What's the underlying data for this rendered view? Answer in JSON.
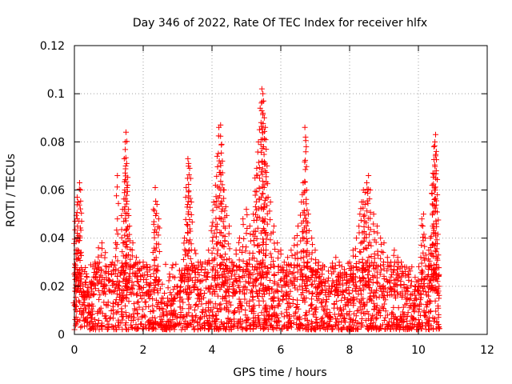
{
  "chart_data": {
    "type": "scatter",
    "title": "Day 346 of 2022, Rate Of TEC Index for receiver hlfx",
    "xlabel": "GPS time / hours",
    "ylabel": "ROTI / TECUs",
    "xlim": [
      0,
      12
    ],
    "ylim": [
      0,
      0.12
    ],
    "xticks": [
      0,
      2,
      4,
      6,
      8,
      10,
      12
    ],
    "xtick_labels": [
      "0",
      "2",
      "4",
      "6",
      "8",
      "10",
      "12"
    ],
    "yticks": [
      0,
      0.02,
      0.04,
      0.06,
      0.08,
      0.1,
      0.12
    ],
    "ytick_labels": [
      "0",
      "0.02",
      "0.04",
      "0.06",
      "0.08",
      "0.1",
      "0.12"
    ],
    "grid": true,
    "marker": "plus",
    "color": "#ff0000",
    "series": [
      {
        "name": "ROTI",
        "points": [
          [
            0.0,
            0.012
          ],
          [
            0.02,
            0.047
          ],
          [
            0.05,
            0.035
          ],
          [
            0.08,
            0.057
          ],
          [
            0.1,
            0.055
          ],
          [
            0.12,
            0.041
          ],
          [
            0.15,
            0.063
          ],
          [
            0.18,
            0.06
          ],
          [
            0.2,
            0.025
          ],
          [
            0.25,
            0.02
          ],
          [
            0.3,
            0.015
          ],
          [
            0.4,
            0.018
          ],
          [
            0.5,
            0.022
          ],
          [
            0.6,
            0.03
          ],
          [
            0.7,
            0.036
          ],
          [
            0.8,
            0.038
          ],
          [
            0.9,
            0.034
          ],
          [
            1.0,
            0.028
          ],
          [
            1.1,
            0.03
          ],
          [
            1.2,
            0.038
          ],
          [
            1.25,
            0.066
          ],
          [
            1.3,
            0.02
          ],
          [
            1.4,
            0.052
          ],
          [
            1.45,
            0.073
          ],
          [
            1.48,
            0.08
          ],
          [
            1.5,
            0.084
          ],
          [
            1.52,
            0.071
          ],
          [
            1.55,
            0.062
          ],
          [
            1.6,
            0.045
          ],
          [
            1.7,
            0.038
          ],
          [
            1.8,
            0.032
          ],
          [
            1.9,
            0.03
          ],
          [
            2.0,
            0.03
          ],
          [
            2.1,
            0.029
          ],
          [
            2.2,
            0.028
          ],
          [
            2.3,
            0.052
          ],
          [
            2.35,
            0.061
          ],
          [
            2.4,
            0.054
          ],
          [
            2.45,
            0.048
          ],
          [
            2.5,
            0.005
          ],
          [
            2.6,
            0.004
          ],
          [
            2.7,
            0.008
          ],
          [
            2.8,
            0.012
          ],
          [
            2.9,
            0.015
          ],
          [
            3.0,
            0.02
          ],
          [
            3.1,
            0.025
          ],
          [
            3.2,
            0.04
          ],
          [
            3.25,
            0.061
          ],
          [
            3.3,
            0.073
          ],
          [
            3.32,
            0.071
          ],
          [
            3.35,
            0.069
          ],
          [
            3.4,
            0.055
          ],
          [
            3.5,
            0.035
          ],
          [
            3.6,
            0.03
          ],
          [
            3.7,
            0.028
          ],
          [
            3.8,
            0.03
          ],
          [
            3.9,
            0.035
          ],
          [
            4.0,
            0.045
          ],
          [
            4.05,
            0.055
          ],
          [
            4.1,
            0.062
          ],
          [
            4.15,
            0.074
          ],
          [
            4.2,
            0.086
          ],
          [
            4.25,
            0.087
          ],
          [
            4.28,
            0.079
          ],
          [
            4.3,
            0.072
          ],
          [
            4.35,
            0.06
          ],
          [
            4.4,
            0.053
          ],
          [
            4.5,
            0.045
          ],
          [
            4.6,
            0.03
          ],
          [
            4.7,
            0.035
          ],
          [
            4.8,
            0.04
          ],
          [
            4.9,
            0.048
          ],
          [
            5.0,
            0.052
          ],
          [
            5.1,
            0.045
          ],
          [
            5.2,
            0.05
          ],
          [
            5.25,
            0.065
          ],
          [
            5.3,
            0.069
          ],
          [
            5.35,
            0.08
          ],
          [
            5.4,
            0.094
          ],
          [
            5.45,
            0.102
          ],
          [
            5.48,
            0.1
          ],
          [
            5.5,
            0.097
          ],
          [
            5.52,
            0.09
          ],
          [
            5.55,
            0.086
          ],
          [
            5.6,
            0.07
          ],
          [
            5.7,
            0.055
          ],
          [
            5.8,
            0.045
          ],
          [
            5.9,
            0.038
          ],
          [
            6.0,
            0.035
          ],
          [
            6.1,
            0.03
          ],
          [
            6.2,
            0.032
          ],
          [
            6.3,
            0.035
          ],
          [
            6.4,
            0.04
          ],
          [
            6.5,
            0.045
          ],
          [
            6.6,
            0.055
          ],
          [
            6.65,
            0.063
          ],
          [
            6.7,
            0.086
          ],
          [
            6.72,
            0.082
          ],
          [
            6.75,
            0.06
          ],
          [
            6.8,
            0.05
          ],
          [
            6.9,
            0.04
          ],
          [
            7.0,
            0.035
          ],
          [
            7.1,
            0.03
          ],
          [
            7.2,
            0.025
          ],
          [
            7.3,
            0.022
          ],
          [
            7.4,
            0.02
          ],
          [
            7.5,
            0.028
          ],
          [
            7.6,
            0.032
          ],
          [
            7.7,
            0.03
          ],
          [
            7.8,
            0.025
          ],
          [
            7.9,
            0.025
          ],
          [
            8.0,
            0.03
          ],
          [
            8.1,
            0.035
          ],
          [
            8.2,
            0.04
          ],
          [
            8.3,
            0.05
          ],
          [
            8.35,
            0.055
          ],
          [
            8.4,
            0.06
          ],
          [
            8.45,
            0.059
          ],
          [
            8.5,
            0.063
          ],
          [
            8.55,
            0.066
          ],
          [
            8.6,
            0.06
          ],
          [
            8.7,
            0.05
          ],
          [
            8.8,
            0.045
          ],
          [
            8.9,
            0.04
          ],
          [
            9.0,
            0.038
          ],
          [
            9.1,
            0.032
          ],
          [
            9.2,
            0.03
          ],
          [
            9.3,
            0.035
          ],
          [
            9.4,
            0.032
          ],
          [
            9.5,
            0.03
          ],
          [
            9.6,
            0.028
          ],
          [
            9.7,
            0.025
          ],
          [
            9.8,
            0.022
          ],
          [
            9.9,
            0.02
          ],
          [
            10.0,
            0.022
          ],
          [
            10.1,
            0.048
          ],
          [
            10.15,
            0.05
          ],
          [
            10.2,
            0.04
          ],
          [
            10.3,
            0.035
          ],
          [
            10.35,
            0.04
          ],
          [
            10.4,
            0.062
          ],
          [
            10.42,
            0.067
          ],
          [
            10.45,
            0.078
          ],
          [
            10.48,
            0.08
          ],
          [
            10.5,
            0.083
          ],
          [
            10.52,
            0.076
          ],
          [
            10.55,
            0.058
          ],
          [
            10.58,
            0.033
          ],
          [
            10.6,
            0.02
          ]
        ],
        "base_band": {
          "x_range": [
            0,
            10.62
          ],
          "y_range": [
            0.002,
            0.03
          ],
          "note": "dense cloud of points filling this band"
        }
      }
    ]
  }
}
